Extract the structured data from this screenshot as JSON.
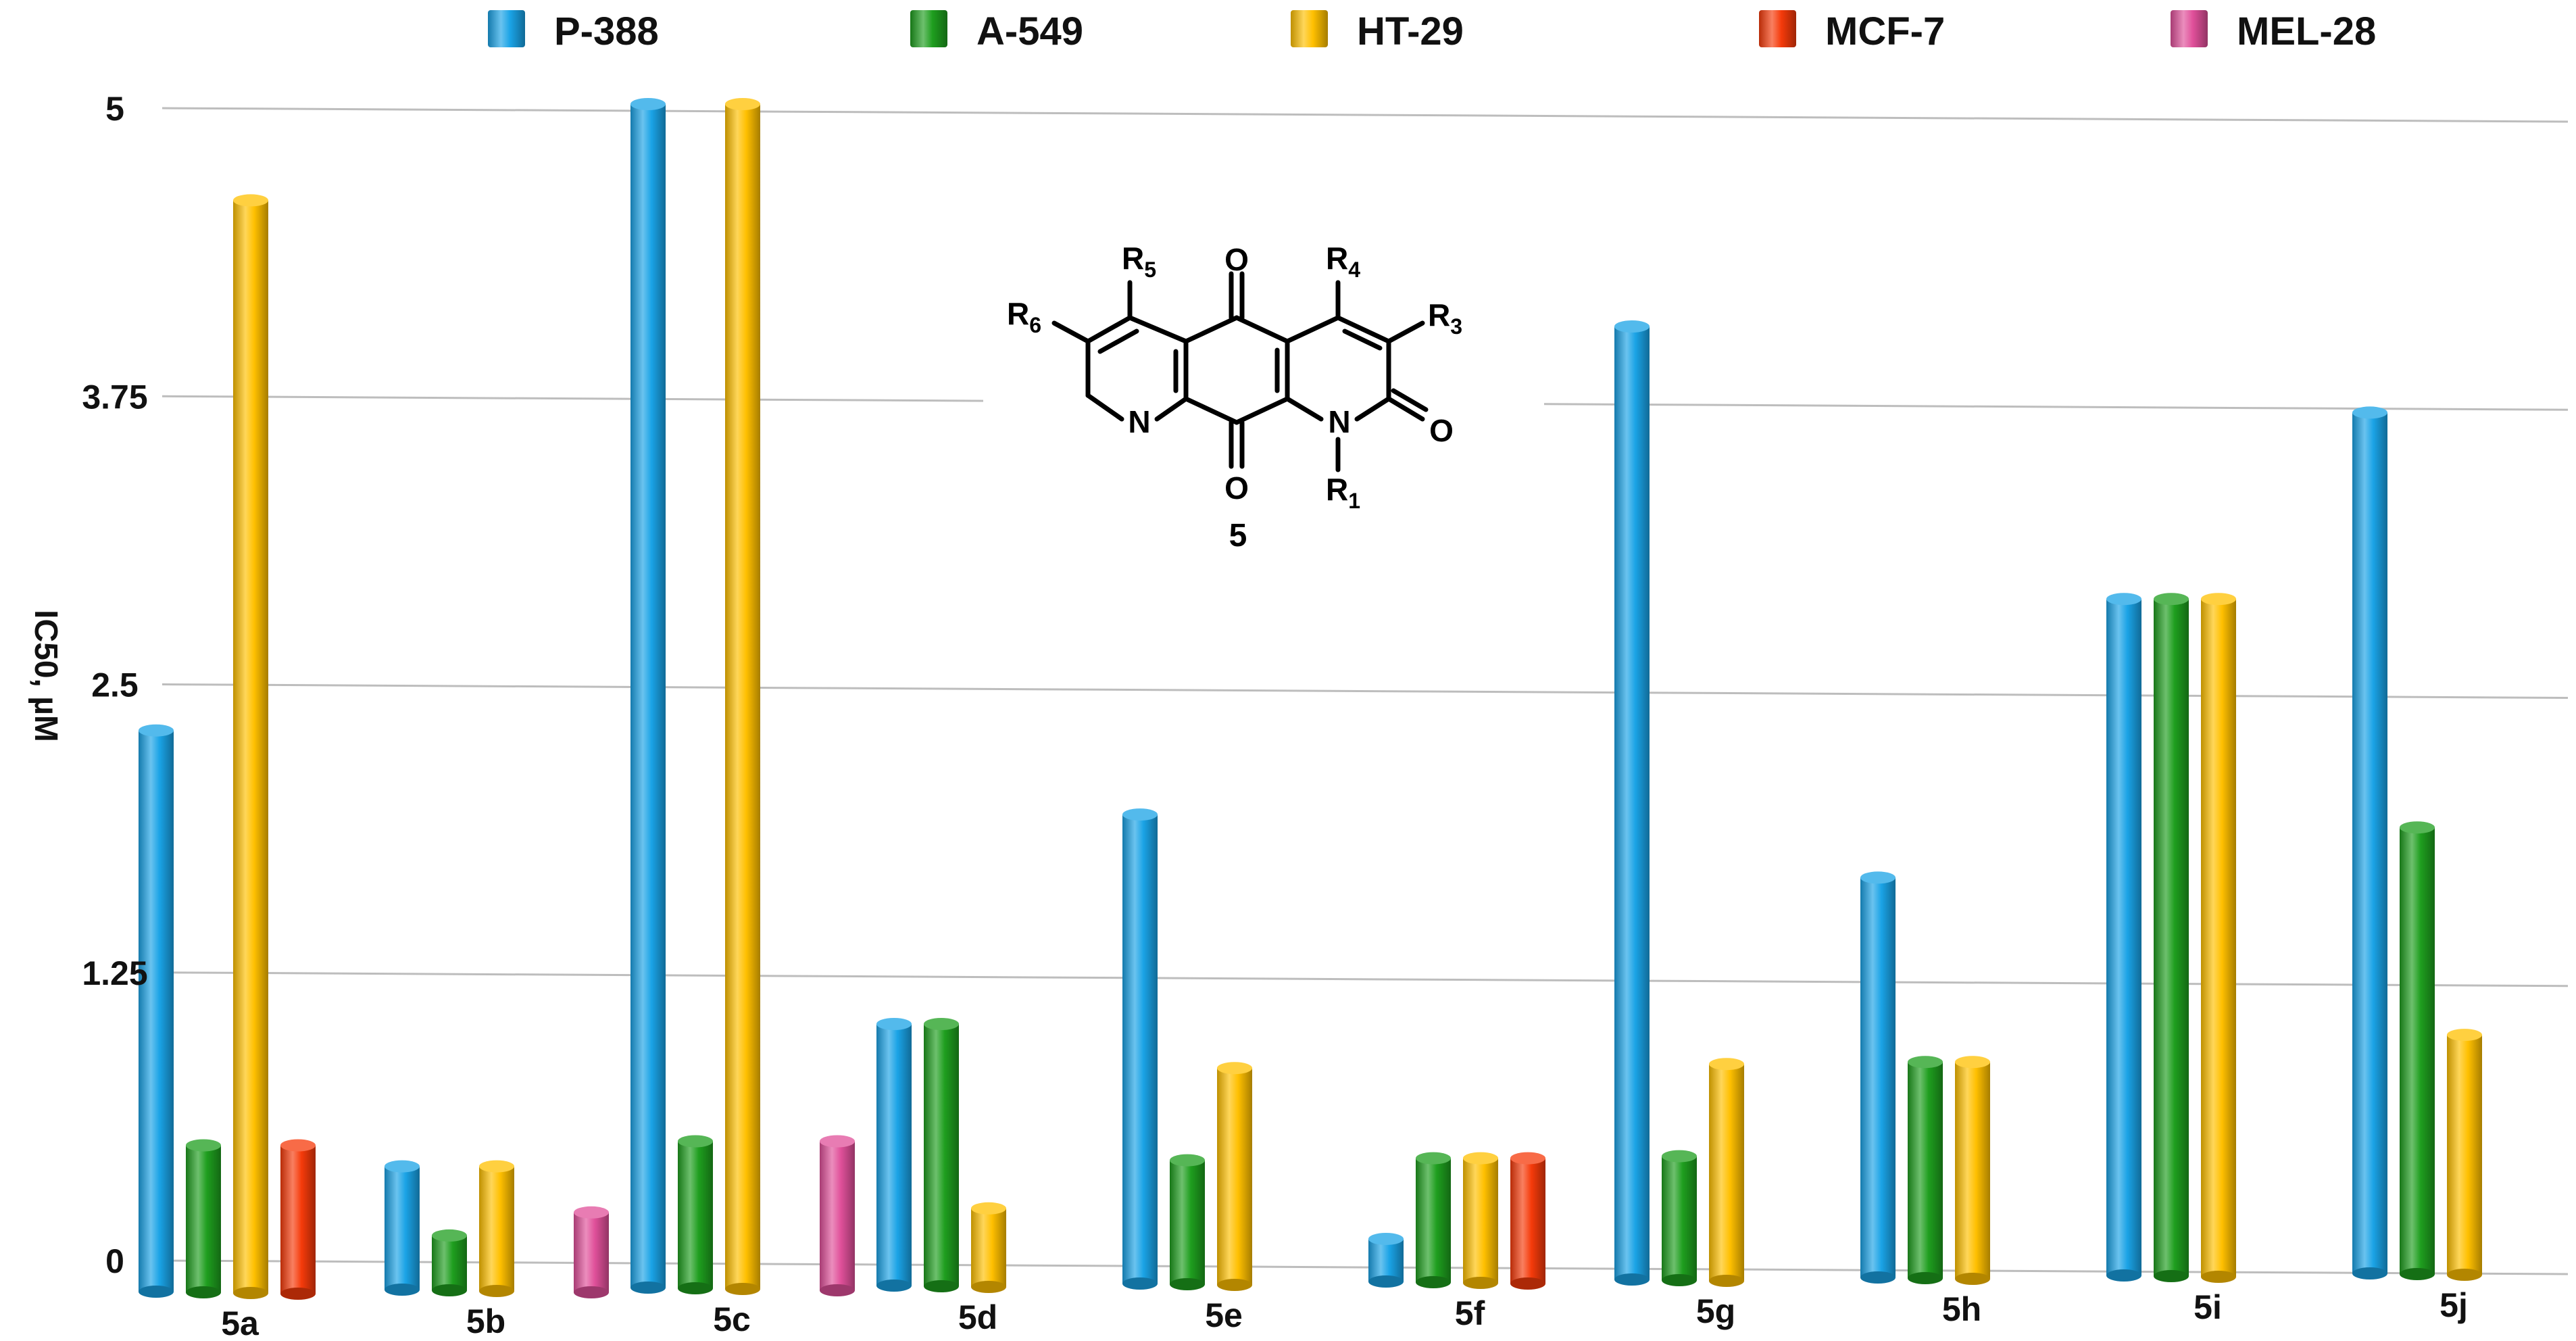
{
  "chart_data": {
    "type": "bar",
    "title": "",
    "xlabel": "",
    "ylabel": "IC50, µM",
    "ylim": [
      0,
      5
    ],
    "yticks": [
      "0",
      "1.25",
      "2.5",
      "3.75",
      "5"
    ],
    "categories": [
      "5a",
      "5b",
      "5c",
      "5d",
      "5e",
      "5f",
      "5g",
      "5h",
      "5i",
      "5j"
    ],
    "series": [
      {
        "name": "P-388",
        "color": "#1AA3E6",
        "values": [
          2.3,
          0.4,
          5.0,
          1.0,
          1.9,
          0.05,
          4.0,
          1.6,
          2.8,
          3.6
        ]
      },
      {
        "name": "A-549",
        "color": "#1E9E1E",
        "values": [
          0.5,
          0.1,
          0.5,
          1.0,
          0.4,
          0.4,
          0.4,
          0.8,
          2.8,
          1.8
        ]
      },
      {
        "name": "HT-29",
        "color": "#FFC000",
        "values": [
          4.6,
          0.4,
          5.0,
          0.2,
          0.8,
          0.4,
          0.8,
          0.8,
          2.8,
          0.9
        ]
      },
      {
        "name": "MCF-7",
        "color": "#F53A0A",
        "values": [
          0.5,
          null,
          null,
          null,
          null,
          0.4,
          null,
          null,
          null,
          null
        ]
      },
      {
        "name": "MEL-28",
        "color": "#E0509A",
        "values": [
          null,
          0.2,
          0.5,
          null,
          null,
          null,
          null,
          null,
          null,
          null
        ]
      }
    ],
    "legend_position": "top",
    "grid": true
  },
  "structure": {
    "compound_label": "5",
    "atoms": [
      "O",
      "O",
      "N",
      "N",
      "O"
    ],
    "substituents": [
      {
        "main": "R",
        "sub": "5"
      },
      {
        "main": "R",
        "sub": "4"
      },
      {
        "main": "R",
        "sub": "6"
      },
      {
        "main": "R",
        "sub": "3"
      },
      {
        "main": "R",
        "sub": "1"
      }
    ]
  }
}
